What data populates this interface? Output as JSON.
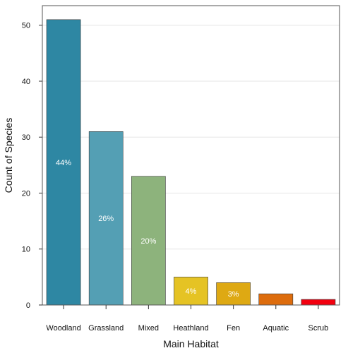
{
  "chart_data": {
    "type": "bar",
    "xlabel": "Main Habitat",
    "ylabel": "Count of Species",
    "categories": [
      "Woodland",
      "Grassland",
      "Mixed",
      "Heathland",
      "Fen",
      "Aquatic",
      "Scrub"
    ],
    "values": [
      51,
      31,
      23,
      5,
      4,
      2,
      1
    ],
    "bar_labels": [
      "44%",
      "26%",
      "20%",
      "4%",
      "3%",
      "",
      ""
    ],
    "colors": [
      "#2e87a3",
      "#549fb4",
      "#8db37c",
      "#e5c324",
      "#dea913",
      "#dd6c0d",
      "#f2000f"
    ],
    "yticks": [
      0,
      10,
      20,
      30,
      40,
      50
    ],
    "ylim": [
      0,
      53.5
    ],
    "grid": "horizontal"
  }
}
